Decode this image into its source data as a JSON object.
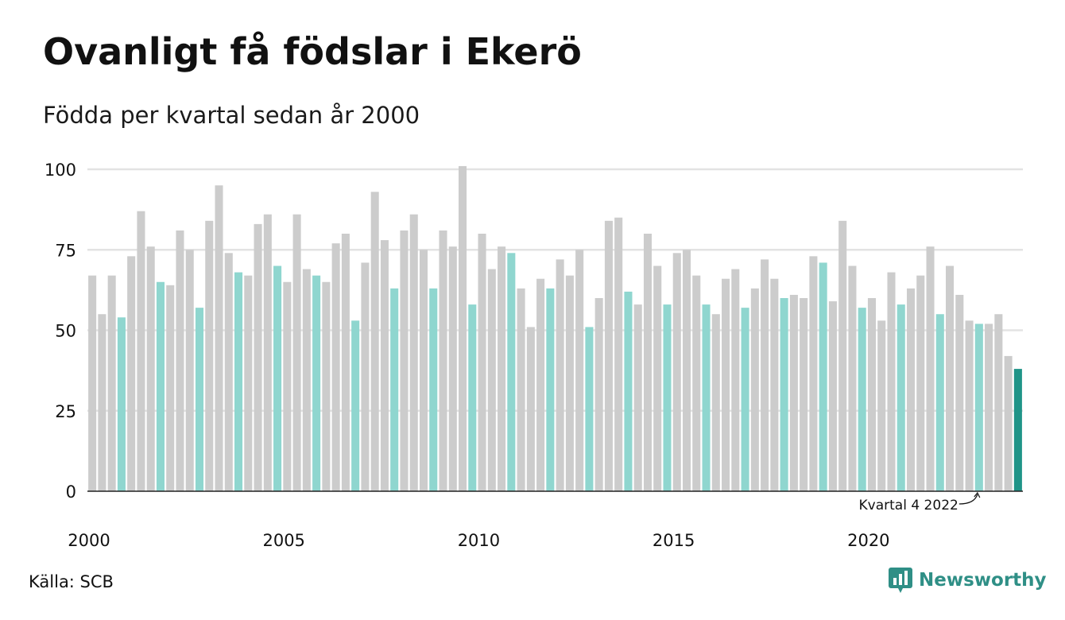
{
  "title": "Ovanligt få födslar i Ekerö",
  "subtitle": "Födda per kvartal sedan år 2000",
  "source": "Källa: SCB",
  "brand": {
    "name": "Newsworthy",
    "icon": "newsworthy-logo-icon"
  },
  "colors": {
    "bar": "#cccccc",
    "highlight": "#8fd6cf",
    "latest": "#1f9488",
    "grid": "#e3e3e3",
    "axis": "#222222"
  },
  "chart_data": {
    "type": "bar",
    "ylim": [
      0,
      100
    ],
    "yticks": [
      0,
      25,
      50,
      75,
      100
    ],
    "xtick_labels": [
      "2000",
      "2005",
      "2010",
      "2015",
      "2020"
    ],
    "xtick_years": [
      2000,
      2005,
      2010,
      2015,
      2020
    ],
    "start_year": 2000,
    "grid": true,
    "annotation": "Kvartal 4 2022",
    "values": [
      67,
      55,
      67,
      54,
      73,
      87,
      76,
      65,
      64,
      81,
      75,
      57,
      84,
      95,
      74,
      68,
      67,
      83,
      86,
      70,
      65,
      86,
      69,
      67,
      65,
      77,
      80,
      53,
      71,
      93,
      78,
      63,
      81,
      86,
      75,
      63,
      81,
      76,
      101,
      58,
      80,
      69,
      76,
      74,
      63,
      51,
      66,
      63,
      72,
      67,
      75,
      51,
      60,
      84,
      85,
      62,
      58,
      80,
      70,
      58,
      74,
      75,
      67,
      58,
      55,
      66,
      69,
      57,
      63,
      72,
      66,
      60,
      61,
      60,
      73,
      71,
      59,
      84,
      70,
      57,
      60,
      53,
      68,
      58,
      63,
      67,
      76,
      55,
      70,
      61,
      53,
      52,
      52,
      55,
      42,
      38
    ]
  }
}
